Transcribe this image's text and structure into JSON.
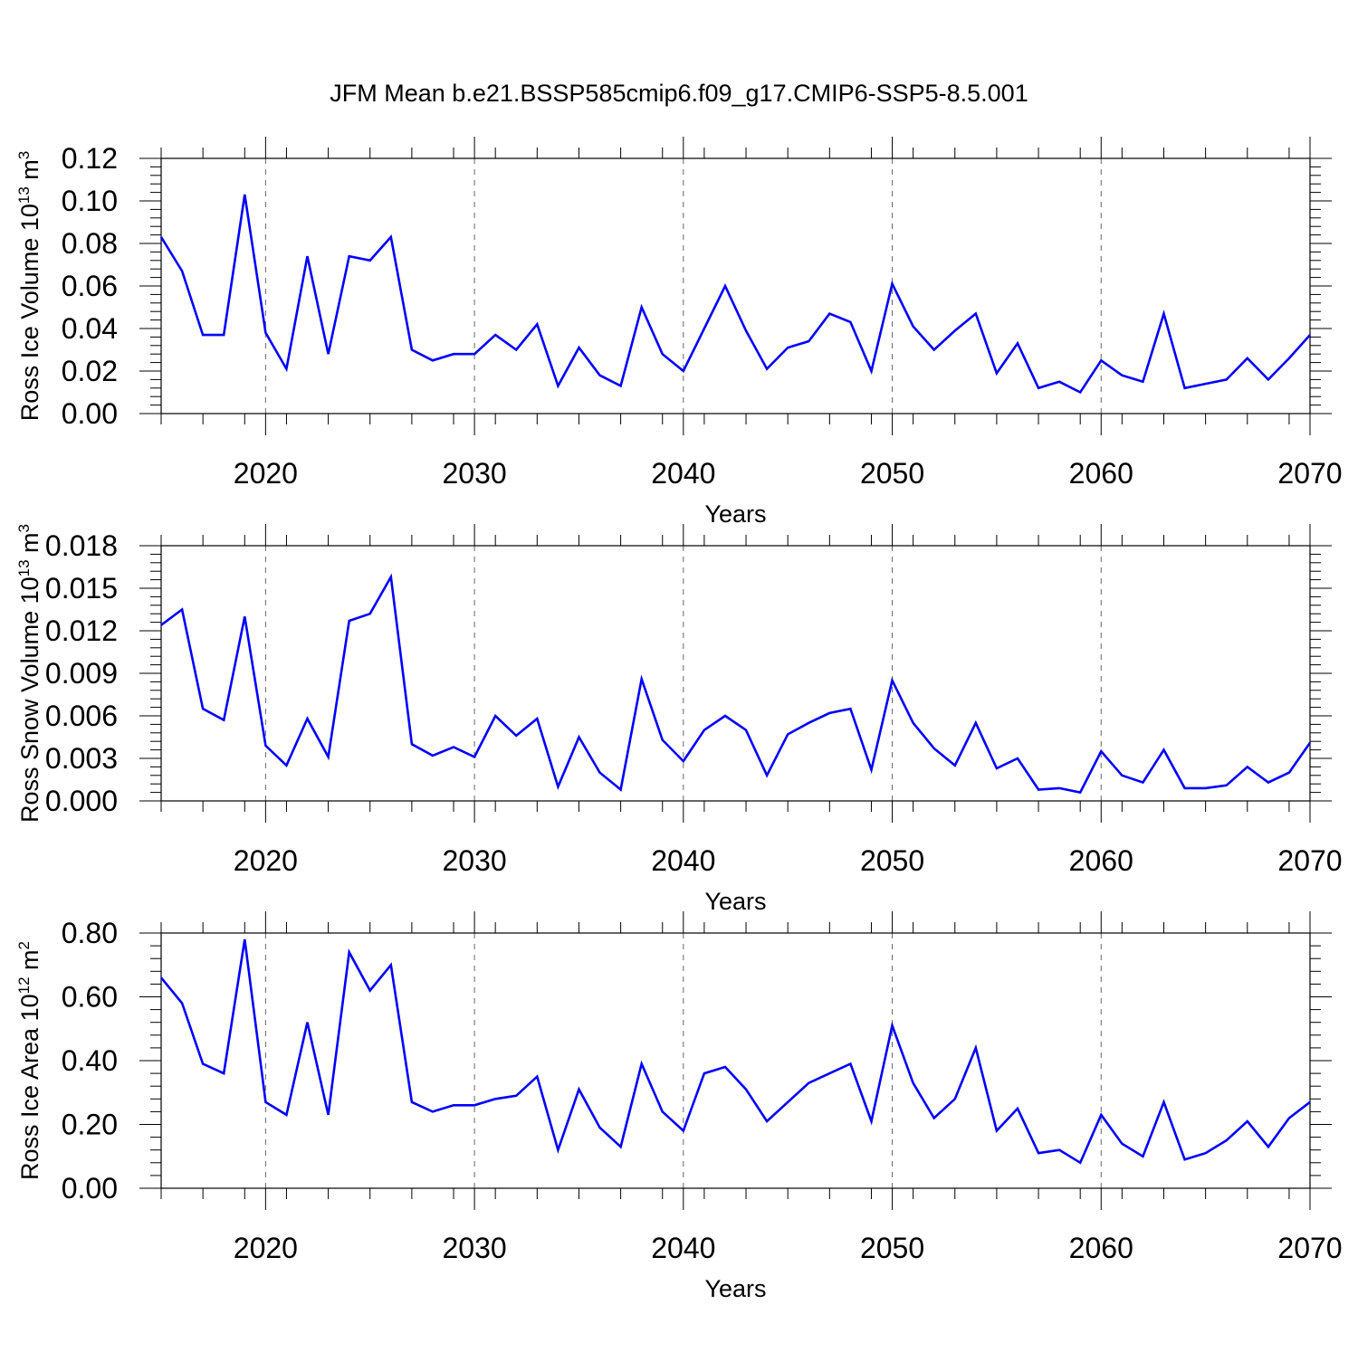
{
  "title": "JFM Mean b.e21.BSSP585cmip6.f09_g17.CMIP6-SSP5-8.5.001",
  "chart_data": [
    {
      "type": "line",
      "xlabel": "Years",
      "ylabel_base": "Ross Ice Volume 10",
      "ylabel_exp": "13",
      "ylabel_unit": " m",
      "ylabel_unit_exp": "3",
      "xlim": [
        2015,
        2070
      ],
      "ylim": [
        0,
        0.12
      ],
      "xticks": [
        2020,
        2030,
        2040,
        2050,
        2060,
        2070
      ],
      "xtick_labels": [
        "2020",
        "2030",
        "2040",
        "2050",
        "2060",
        "2070"
      ],
      "yticks": [
        0,
        0.02,
        0.04,
        0.06,
        0.08,
        0.1,
        0.12
      ],
      "ytick_labels": [
        "0.00",
        "0.02",
        "0.04",
        "0.06",
        "0.08",
        "0.10",
        "0.12"
      ],
      "grid": "vertical dashed at major x ticks",
      "color": "#0000ff",
      "x": [
        2015,
        2016,
        2017,
        2018,
        2019,
        2020,
        2021,
        2022,
        2023,
        2024,
        2025,
        2026,
        2027,
        2028,
        2029,
        2030,
        2031,
        2032,
        2033,
        2034,
        2035,
        2036,
        2037,
        2038,
        2039,
        2040,
        2041,
        2042,
        2043,
        2044,
        2045,
        2046,
        2047,
        2048,
        2049,
        2050,
        2051,
        2052,
        2053,
        2054,
        2055,
        2056,
        2057,
        2058,
        2059,
        2060,
        2061,
        2062,
        2063,
        2064,
        2065,
        2066,
        2067,
        2068,
        2069,
        2070
      ],
      "values": [
        0.083,
        0.067,
        0.037,
        0.037,
        0.103,
        0.038,
        0.021,
        0.074,
        0.028,
        0.074,
        0.072,
        0.083,
        0.03,
        0.025,
        0.028,
        0.028,
        0.037,
        0.03,
        0.042,
        0.013,
        0.031,
        0.018,
        0.013,
        0.05,
        0.028,
        0.02,
        0.04,
        0.06,
        0.039,
        0.021,
        0.031,
        0.034,
        0.047,
        0.043,
        0.02,
        0.061,
        0.041,
        0.03,
        0.039,
        0.047,
        0.019,
        0.033,
        0.012,
        0.015,
        0.01,
        0.025,
        0.018,
        0.015,
        0.047,
        0.012,
        0.014,
        0.016,
        0.026,
        0.016,
        0.026,
        0.037
      ]
    },
    {
      "type": "line",
      "xlabel": "Years",
      "ylabel_base": "Ross Snow Volume 10",
      "ylabel_exp": "13",
      "ylabel_unit": " m",
      "ylabel_unit_exp": "3",
      "xlim": [
        2015,
        2070
      ],
      "ylim": [
        0,
        0.018
      ],
      "xticks": [
        2020,
        2030,
        2040,
        2050,
        2060,
        2070
      ],
      "xtick_labels": [
        "2020",
        "2030",
        "2040",
        "2050",
        "2060",
        "2070"
      ],
      "yticks": [
        0,
        0.003,
        0.006,
        0.009,
        0.012,
        0.015,
        0.018
      ],
      "ytick_labels": [
        "0.000",
        "0.003",
        "0.006",
        "0.009",
        "0.012",
        "0.015",
        "0.018"
      ],
      "grid": "vertical dashed at major x ticks",
      "color": "#0000ff",
      "x": [
        2015,
        2016,
        2017,
        2018,
        2019,
        2020,
        2021,
        2022,
        2023,
        2024,
        2025,
        2026,
        2027,
        2028,
        2029,
        2030,
        2031,
        2032,
        2033,
        2034,
        2035,
        2036,
        2037,
        2038,
        2039,
        2040,
        2041,
        2042,
        2043,
        2044,
        2045,
        2046,
        2047,
        2048,
        2049,
        2050,
        2051,
        2052,
        2053,
        2054,
        2055,
        2056,
        2057,
        2058,
        2059,
        2060,
        2061,
        2062,
        2063,
        2064,
        2065,
        2066,
        2067,
        2068,
        2069,
        2070
      ],
      "values": [
        0.0124,
        0.0135,
        0.0065,
        0.0057,
        0.013,
        0.0039,
        0.0025,
        0.0058,
        0.0031,
        0.0127,
        0.0132,
        0.0158,
        0.004,
        0.0032,
        0.0038,
        0.0031,
        0.006,
        0.0046,
        0.0058,
        0.001,
        0.0045,
        0.002,
        0.0008,
        0.0086,
        0.0043,
        0.0028,
        0.005,
        0.006,
        0.005,
        0.0018,
        0.0047,
        0.0055,
        0.0062,
        0.0065,
        0.0022,
        0.0085,
        0.0055,
        0.0037,
        0.0025,
        0.0055,
        0.0023,
        0.003,
        0.0008,
        0.0009,
        0.0006,
        0.0035,
        0.0018,
        0.0013,
        0.0036,
        0.0009,
        0.0009,
        0.0011,
        0.0024,
        0.0013,
        0.002,
        0.0041
      ]
    },
    {
      "type": "line",
      "xlabel": "Years",
      "ylabel_base": "Ross Ice Area 10",
      "ylabel_exp": "12",
      "ylabel_unit": " m",
      "ylabel_unit_exp": "2",
      "xlim": [
        2015,
        2070
      ],
      "ylim": [
        0,
        0.8
      ],
      "xticks": [
        2020,
        2030,
        2040,
        2050,
        2060,
        2070
      ],
      "xtick_labels": [
        "2020",
        "2030",
        "2040",
        "2050",
        "2060",
        "2070"
      ],
      "yticks": [
        0,
        0.2,
        0.4,
        0.6,
        0.8
      ],
      "ytick_labels": [
        "0.00",
        "0.20",
        "0.40",
        "0.60",
        "0.80"
      ],
      "grid": "vertical dashed at major x ticks",
      "color": "#0000ff",
      "x": [
        2015,
        2016,
        2017,
        2018,
        2019,
        2020,
        2021,
        2022,
        2023,
        2024,
        2025,
        2026,
        2027,
        2028,
        2029,
        2030,
        2031,
        2032,
        2033,
        2034,
        2035,
        2036,
        2037,
        2038,
        2039,
        2040,
        2041,
        2042,
        2043,
        2044,
        2045,
        2046,
        2047,
        2048,
        2049,
        2050,
        2051,
        2052,
        2053,
        2054,
        2055,
        2056,
        2057,
        2058,
        2059,
        2060,
        2061,
        2062,
        2063,
        2064,
        2065,
        2066,
        2067,
        2068,
        2069,
        2070
      ],
      "values": [
        0.66,
        0.58,
        0.39,
        0.36,
        0.78,
        0.27,
        0.23,
        0.52,
        0.23,
        0.74,
        0.62,
        0.7,
        0.27,
        0.24,
        0.26,
        0.26,
        0.28,
        0.29,
        0.35,
        0.12,
        0.31,
        0.19,
        0.13,
        0.39,
        0.24,
        0.18,
        0.36,
        0.38,
        0.31,
        0.21,
        0.27,
        0.33,
        0.36,
        0.39,
        0.21,
        0.51,
        0.33,
        0.22,
        0.28,
        0.44,
        0.18,
        0.25,
        0.11,
        0.12,
        0.08,
        0.23,
        0.14,
        0.1,
        0.27,
        0.09,
        0.11,
        0.15,
        0.21,
        0.13,
        0.22,
        0.27
      ]
    }
  ]
}
